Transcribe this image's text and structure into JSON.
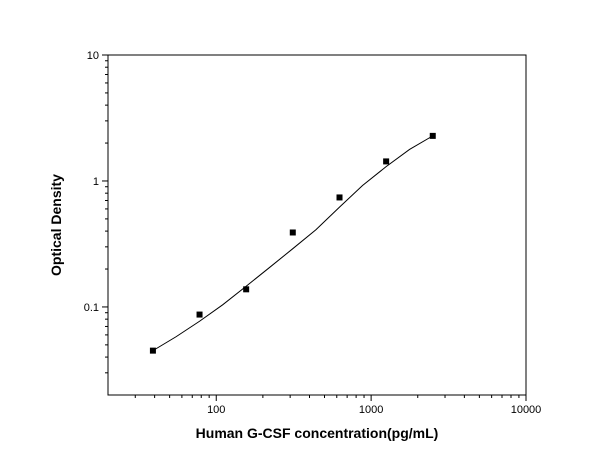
{
  "chart_data": {
    "type": "scatter",
    "title": "",
    "xlabel": "Human G-CSF concentration(pg/mL)",
    "ylabel": "Optical Density",
    "xscale": "log",
    "yscale": "log",
    "xlim": [
      20,
      10000
    ],
    "ylim": [
      0.02,
      10
    ],
    "x_ticks": [
      {
        "value": 100,
        "label": "100"
      },
      {
        "value": 1000,
        "label": "1000"
      },
      {
        "value": 10000,
        "label": "10000"
      }
    ],
    "y_ticks": [
      {
        "value": 0.1,
        "label": "0.1"
      },
      {
        "value": 1,
        "label": "1"
      },
      {
        "value": 10,
        "label": "10"
      }
    ],
    "grid": false,
    "legend": "none",
    "series": [
      {
        "marker": "square",
        "color": "#000000",
        "points": [
          {
            "x": 39,
            "y": 0.045
          },
          {
            "x": 78,
            "y": 0.087
          },
          {
            "x": 156,
            "y": 0.138
          },
          {
            "x": 312,
            "y": 0.39
          },
          {
            "x": 625,
            "y": 0.74
          },
          {
            "x": 1250,
            "y": 1.43
          },
          {
            "x": 2500,
            "y": 2.28
          }
        ]
      }
    ],
    "fit_curve": {
      "type": "line",
      "color": "#000000",
      "points": [
        {
          "x": 39,
          "y": 0.045
        },
        {
          "x": 55,
          "y": 0.058
        },
        {
          "x": 78,
          "y": 0.077
        },
        {
          "x": 110,
          "y": 0.104
        },
        {
          "x": 156,
          "y": 0.146
        },
        {
          "x": 220,
          "y": 0.205
        },
        {
          "x": 312,
          "y": 0.29
        },
        {
          "x": 440,
          "y": 0.41
        },
        {
          "x": 625,
          "y": 0.62
        },
        {
          "x": 880,
          "y": 0.92
        },
        {
          "x": 1250,
          "y": 1.3
        },
        {
          "x": 1770,
          "y": 1.78
        },
        {
          "x": 2500,
          "y": 2.28
        }
      ]
    }
  }
}
